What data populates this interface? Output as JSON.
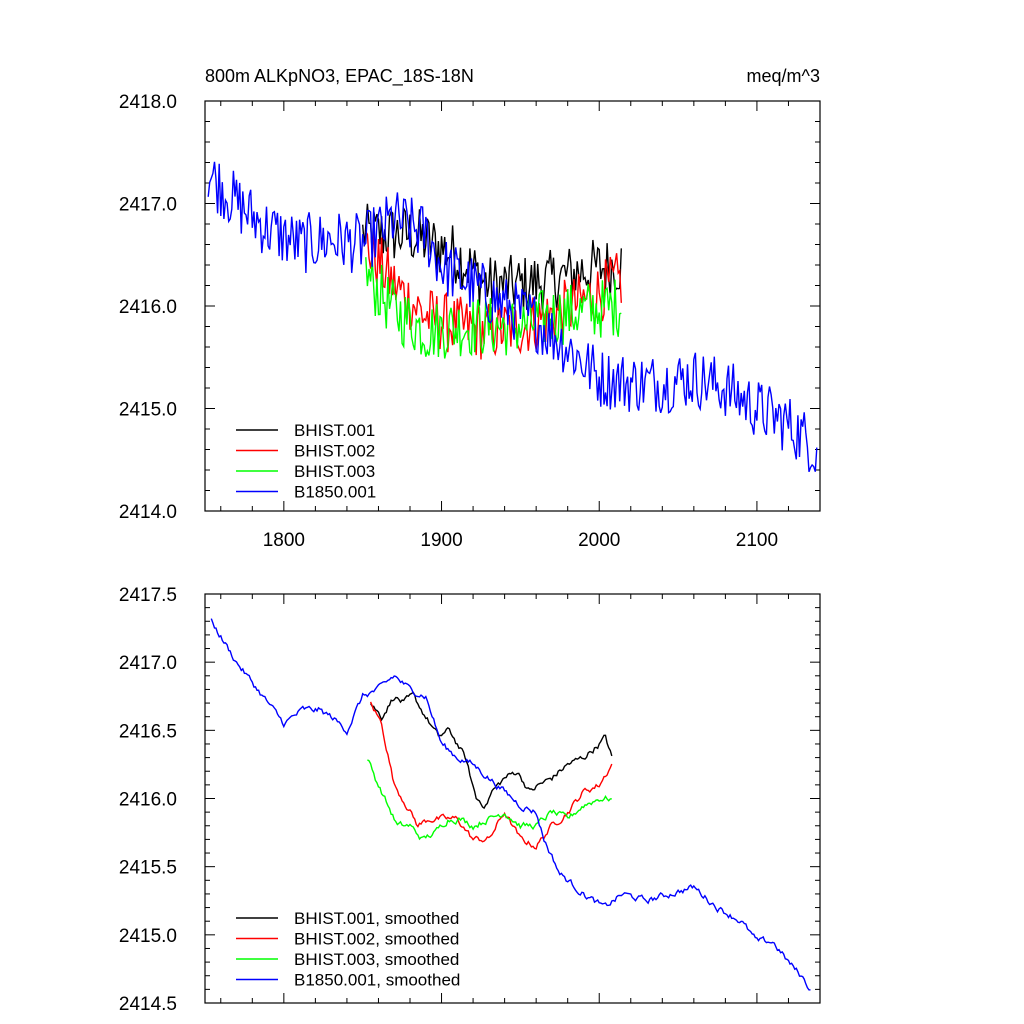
{
  "header": {
    "title_left": "800m ALKpNO3, EPAC_18S-18N",
    "title_right": "meq/m^3"
  },
  "colors": {
    "BHIST.001": "#000000",
    "BHIST.002": "#ff0000",
    "BHIST.003": "#00ff00",
    "B1850.001": "#0000ff"
  },
  "chart_data": [
    {
      "type": "line",
      "title": "800m ALKpNO3, EPAC_18S-18N",
      "units": "meq/m^3",
      "xlabel": "",
      "ylabel": "",
      "xlim": [
        1750,
        2140
      ],
      "ylim": [
        2414.0,
        2418.0
      ],
      "xticks": [
        1800,
        1900,
        2000,
        2100
      ],
      "xtick_labels": [
        "1800",
        "1900",
        "2000",
        "2100"
      ],
      "yticks": [
        2414.0,
        2415.0,
        2416.0,
        2417.0,
        2418.0
      ],
      "ytick_labels": [
        "2414.0",
        "2415.0",
        "2416.0",
        "2417.0",
        "2418.0"
      ],
      "legend_location": "bottom-left",
      "noisy": true,
      "series": [
        {
          "name": "BHIST.001",
          "x": [
            1850,
            1880,
            1910,
            1930,
            1950,
            1970,
            1990,
            2014
          ],
          "values": [
            2416.7,
            2416.7,
            2416.5,
            2416.2,
            2416.2,
            2416.25,
            2416.35,
            2416.4
          ],
          "noise": 0.3
        },
        {
          "name": "BHIST.002",
          "x": [
            1852,
            1870,
            1890,
            1910,
            1930,
            1950,
            1970,
            1990,
            2014
          ],
          "values": [
            2416.6,
            2416.2,
            2415.9,
            2415.8,
            2415.75,
            2415.8,
            2415.9,
            2416.05,
            2416.25
          ],
          "noise": 0.3
        },
        {
          "name": "BHIST.003",
          "x": [
            1852,
            1870,
            1890,
            1910,
            1930,
            1950,
            1970,
            1990,
            2014
          ],
          "values": [
            2416.3,
            2415.95,
            2415.75,
            2415.8,
            2415.8,
            2415.8,
            2415.9,
            2415.95,
            2416.0
          ],
          "noise": 0.3
        },
        {
          "name": "B1850.001",
          "x": [
            1752,
            1770,
            1790,
            1810,
            1830,
            1850,
            1870,
            1890,
            1900,
            1920,
            1940,
            1960,
            1980,
            2000,
            2020,
            2040,
            2060,
            2080,
            2100,
            2120,
            2138
          ],
          "values": [
            2417.3,
            2417.0,
            2416.75,
            2416.6,
            2416.65,
            2416.6,
            2416.85,
            2416.7,
            2416.4,
            2416.2,
            2416.0,
            2415.85,
            2415.6,
            2415.3,
            2415.25,
            2415.25,
            2415.3,
            2415.2,
            2415.0,
            2414.85,
            2414.6
          ],
          "noise": 0.3
        }
      ]
    },
    {
      "type": "line",
      "title": "",
      "xlabel": "",
      "ylabel": "",
      "xlim": [
        1750,
        2140
      ],
      "ylim": [
        2414.5,
        2417.5
      ],
      "xticks": [
        1800,
        1900,
        2000,
        2100
      ],
      "yticks": [
        2414.5,
        2415.0,
        2415.5,
        2416.0,
        2416.5,
        2417.0,
        2417.5
      ],
      "ytick_labels": [
        "2414.5",
        "2415.0",
        "2415.5",
        "2416.0",
        "2416.5",
        "2417.0",
        "2417.5"
      ],
      "legend_location": "bottom-left",
      "noisy": false,
      "series": [
        {
          "name": "BHIST.001, smoothed",
          "x": [
            1855,
            1862,
            1870,
            1876,
            1882,
            1890,
            1898,
            1905,
            1915,
            1922,
            1928,
            1932,
            1940,
            1948,
            1956,
            1962,
            1970,
            1980,
            1990,
            2000,
            2004,
            2008
          ],
          "values": [
            2416.7,
            2416.6,
            2416.75,
            2416.7,
            2416.75,
            2416.6,
            2416.45,
            2416.5,
            2416.3,
            2416.0,
            2415.95,
            2416.05,
            2416.15,
            2416.2,
            2416.05,
            2416.1,
            2416.15,
            2416.25,
            2416.3,
            2416.4,
            2416.45,
            2416.3
          ],
          "noise": 0.02
        },
        {
          "name": "BHIST.002, smoothed",
          "x": [
            1855,
            1862,
            1870,
            1878,
            1885,
            1892,
            1900,
            1910,
            1920,
            1930,
            1940,
            1950,
            1960,
            1970,
            1980,
            1990,
            2000,
            2008
          ],
          "values": [
            2416.7,
            2416.55,
            2416.1,
            2415.95,
            2415.8,
            2415.85,
            2415.85,
            2415.85,
            2415.7,
            2415.7,
            2415.9,
            2415.7,
            2415.65,
            2415.8,
            2415.9,
            2416.05,
            2416.1,
            2416.25
          ],
          "noise": 0.02
        },
        {
          "name": "BHIST.003, smoothed",
          "x": [
            1853,
            1858,
            1866,
            1872,
            1880,
            1888,
            1896,
            1904,
            1912,
            1920,
            1930,
            1940,
            1950,
            1960,
            1970,
            1980,
            1990,
            2000,
            2008
          ],
          "values": [
            2416.3,
            2416.15,
            2415.95,
            2415.8,
            2415.8,
            2415.7,
            2415.75,
            2415.85,
            2415.85,
            2415.8,
            2415.85,
            2415.9,
            2415.8,
            2415.8,
            2415.9,
            2415.85,
            2415.95,
            2416.0,
            2416.0
          ],
          "noise": 0.02
        },
        {
          "name": "B1850.001, smoothed",
          "x": [
            1754,
            1762,
            1770,
            1780,
            1790,
            1800,
            1812,
            1822,
            1830,
            1840,
            1850,
            1860,
            1870,
            1880,
            1890,
            1900,
            1910,
            1920,
            1930,
            1940,
            1950,
            1960,
            1965,
            1975,
            1990,
            2003,
            2015,
            2030,
            2045,
            2060,
            2075,
            2090,
            2100,
            2110,
            2120,
            2128,
            2134
          ],
          "values": [
            2417.3,
            2417.15,
            2417.0,
            2416.85,
            2416.7,
            2416.55,
            2416.65,
            2416.65,
            2416.6,
            2416.5,
            2416.75,
            2416.8,
            2416.9,
            2416.8,
            2416.75,
            2416.4,
            2416.3,
            2416.25,
            2416.15,
            2416.05,
            2415.95,
            2415.9,
            2415.7,
            2415.45,
            2415.3,
            2415.2,
            2415.3,
            2415.25,
            2415.3,
            2415.35,
            2415.2,
            2415.1,
            2414.95,
            2414.95,
            2414.8,
            2414.7,
            2414.6
          ],
          "noise": 0.02
        }
      ]
    }
  ]
}
